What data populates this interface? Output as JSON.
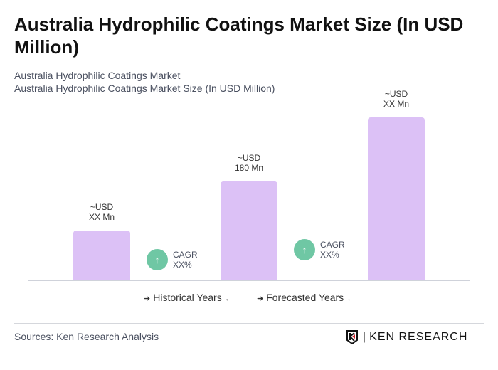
{
  "title": "Australia Hydrophilic Coatings Market Size (In USD Million)",
  "subtitle1": "Australia Hydrophilic Coatings Market",
  "subtitle2": "Australia Hydrophilic Coatings Market Size (In USD Million)",
  "chart_data": {
    "type": "bar",
    "categories": [
      "",
      "",
      " "
    ],
    "values": [
      90,
      180,
      296
    ],
    "data_labels": [
      [
        "~USD",
        "XX Mn"
      ],
      [
        "~USD",
        "180 Mn"
      ],
      [
        "~USD",
        "XX Mn"
      ]
    ],
    "bar_color": "#dcc1f6",
    "ylim": [
      0,
      310
    ],
    "grid": false,
    "cagr": [
      {
        "label": "CAGR",
        "value": "XX%"
      },
      {
        "label": "CAGR",
        "value": "XX%"
      }
    ],
    "cagr_color": "#6fc7a4",
    "legend": [
      "Historical Years",
      "Forecasted Years"
    ]
  },
  "footer": {
    "source": "Sources: Ken Research Analysis",
    "logo": "KEN RESEARCH"
  }
}
